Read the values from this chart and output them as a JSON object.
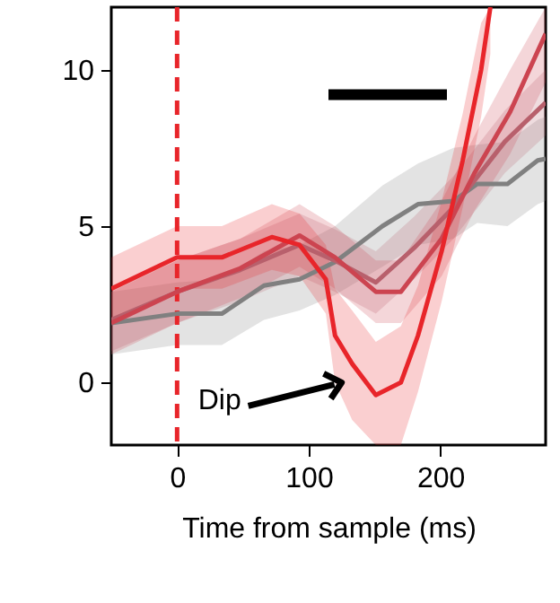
{
  "chart_data": {
    "type": "line",
    "xlabel": "Time from sample (ms)",
    "xlim": [
      -50,
      280
    ],
    "xticks": [
      0,
      100,
      200
    ],
    "ylim": [
      -2,
      12
    ],
    "yticks": [
      0,
      5,
      10
    ],
    "grid": false,
    "marker": "none",
    "line_style": "solid",
    "series": [
      {
        "color": "#808080",
        "x": [
          -50,
          0,
          34,
          66,
          93,
          120,
          156,
          183,
          210,
          228,
          251,
          274,
          280
        ],
        "values": [
          1.9,
          2.2,
          2.2,
          3.1,
          3.3,
          3.85,
          5.0,
          5.7,
          5.8,
          6.35,
          6.35,
          7.1,
          7.15
        ],
        "lower": [
          0.9,
          1.2,
          1.2,
          2.0,
          2.3,
          2.8,
          3.7,
          4.4,
          4.6,
          5.1,
          5.0,
          5.7,
          5.8
        ],
        "upper": [
          2.9,
          3.2,
          3.3,
          4.2,
          4.4,
          5.0,
          6.3,
          7.0,
          7.5,
          7.6,
          7.7,
          8.4,
          8.5
        ]
      },
      {
        "color": "#b8606c",
        "x": [
          -50,
          0,
          48,
          93,
          120,
          151,
          180,
          210,
          249,
          280
        ],
        "values": [
          2.0,
          2.9,
          3.6,
          4.4,
          3.9,
          3.2,
          4.3,
          5.6,
          7.7,
          8.95
        ],
        "lower": [
          1.0,
          1.9,
          2.6,
          3.4,
          2.9,
          2.2,
          3.3,
          4.6,
          6.7,
          7.9
        ],
        "upper": [
          3.0,
          3.9,
          4.6,
          5.4,
          4.9,
          4.2,
          5.3,
          6.6,
          8.7,
          10.0
        ]
      },
      {
        "color": "#cc4450",
        "x": [
          -50,
          0,
          48,
          93,
          120,
          151,
          170,
          201,
          226,
          253,
          280
        ],
        "values": [
          1.9,
          2.9,
          3.65,
          4.7,
          4.0,
          2.9,
          2.9,
          4.6,
          6.7,
          8.65,
          11.15
        ],
        "lower": [
          0.9,
          1.9,
          2.7,
          3.7,
          3.0,
          1.9,
          1.9,
          3.4,
          5.5,
          7.3,
          9.6
        ],
        "upper": [
          2.9,
          3.9,
          4.6,
          5.7,
          5.0,
          3.9,
          3.9,
          5.8,
          7.9,
          10.0,
          12
        ]
      },
      {
        "color": "#e8252a",
        "x": [
          -50,
          0,
          34,
          72,
          93,
          113,
          120,
          133,
          151,
          170,
          183,
          201,
          217,
          231,
          238
        ],
        "values": [
          3.0,
          4.0,
          4.0,
          4.65,
          4.4,
          3.3,
          1.5,
          0.6,
          -0.4,
          0,
          1.5,
          4.2,
          7.1,
          10,
          12
        ],
        "lower": [
          2.0,
          3.0,
          3.0,
          3.6,
          3.4,
          2.2,
          0.0,
          -1.2,
          -2,
          -2,
          -0.3,
          2.6,
          5.6,
          8.5,
          10.5
        ],
        "upper": [
          4.0,
          5.0,
          5.0,
          5.7,
          5.4,
          4.4,
          3.0,
          2.3,
          1.3,
          1.8,
          3.1,
          5.8,
          8.6,
          11.5,
          12
        ]
      },
      {
        "color": "#000000",
        "x": [
          115,
          205
        ],
        "values": [
          9.2,
          9.2
        ]
      }
    ],
    "ref_lines": [
      {
        "axis": "x",
        "value": 0,
        "color": "#e8252a",
        "line_style": "dashed"
      }
    ],
    "annotations": [
      {
        "text": "Dip",
        "x": 125,
        "y": 0
      }
    ]
  }
}
